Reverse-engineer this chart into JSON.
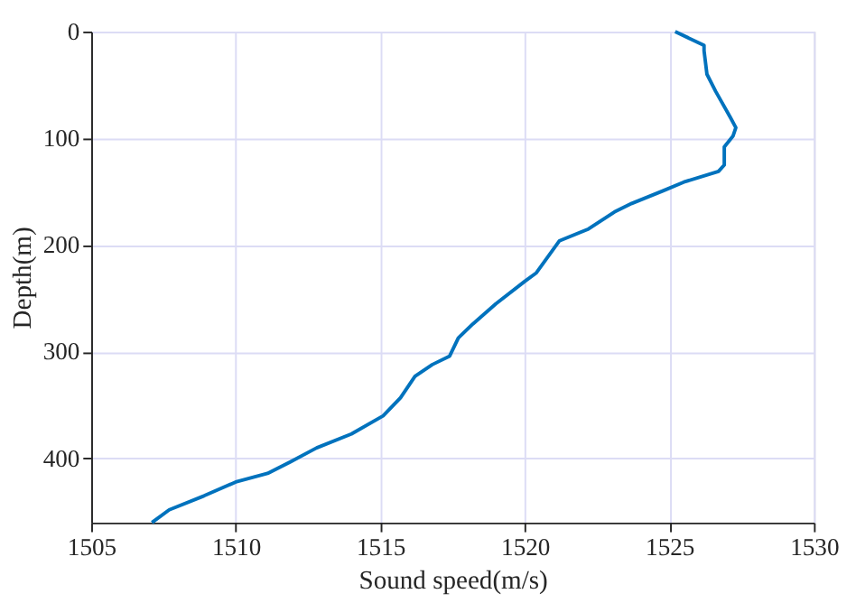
{
  "chart_data": {
    "type": "line",
    "xlabel": "Sound speed(m/s)",
    "ylabel": "Depth(m)",
    "x": [
      1525.2,
      1526.2,
      1526.2,
      1526.3,
      1526.6,
      1527.1,
      1527.3,
      1527.2,
      1526.9,
      1526.9,
      1526.7,
      1525.5,
      1524.8,
      1523.7,
      1523.1,
      1522.2,
      1521.2,
      1520.4,
      1520.0,
      1519.0,
      1518.2,
      1517.7,
      1517.4,
      1516.8,
      1516.2,
      1515.7,
      1515.1,
      1514.0,
      1512.8,
      1511.9,
      1511.1,
      1510.0,
      1508.9,
      1507.7,
      1507.1
    ],
    "series": [
      {
        "color": "#0072bd",
        "values": [
          0,
          13,
          18,
          40,
          56,
          80,
          90,
          98,
          108,
          125,
          131,
          141,
          149,
          161,
          169,
          185,
          196,
          226,
          234,
          255,
          274,
          287,
          304,
          312,
          323,
          343,
          360,
          377,
          390,
          403,
          414,
          422,
          435,
          448,
          460
        ]
      }
    ],
    "xlim": [
      1505,
      1530
    ],
    "xticks": [
      1505,
      1510,
      1515,
      1520,
      1525,
      1530
    ],
    "ylim": [
      460,
      0
    ],
    "yticks": [
      0,
      100,
      200,
      300,
      400
    ],
    "grid": true,
    "line_style": "solid",
    "marker": "none"
  }
}
